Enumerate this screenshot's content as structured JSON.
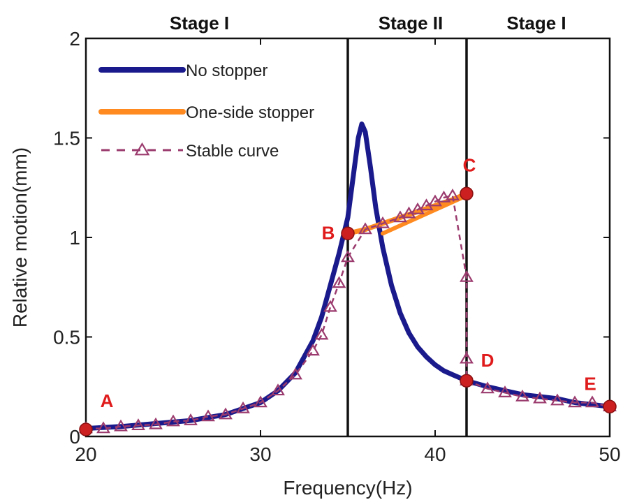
{
  "chart_data": {
    "type": "line",
    "xlabel": "Frequency(Hz)",
    "ylabel": "Relative motion(mm)",
    "xlim": [
      20,
      50
    ],
    "ylim": [
      0,
      2
    ],
    "x_ticks": [
      "20",
      "30",
      "40",
      "50"
    ],
    "y_ticks": [
      "0",
      "0.5",
      "1",
      "1.5",
      "2"
    ],
    "grid": false,
    "legend_position": "top-left",
    "stage_boundaries": [
      35,
      41.8
    ],
    "stages": [
      {
        "label": "Stage I",
        "x": 26.5
      },
      {
        "label": "Stage II",
        "x": 38.6
      },
      {
        "label": "Stage I",
        "x": 45.8
      }
    ],
    "series": [
      {
        "name": "No stopper",
        "color": "#1a1a8c",
        "style": "solid",
        "x": [
          20,
          22,
          24,
          26,
          28,
          30,
          31,
          32,
          33,
          33.5,
          34,
          34.5,
          35,
          35.3,
          35.6,
          35.8,
          36.0,
          36.3,
          36.6,
          37,
          37.5,
          38,
          38.5,
          39,
          39.5,
          40,
          40.5,
          41,
          41.8,
          43,
          44,
          45,
          46,
          47,
          48,
          49,
          50
        ],
        "y": [
          0.04,
          0.05,
          0.065,
          0.08,
          0.11,
          0.17,
          0.23,
          0.32,
          0.48,
          0.6,
          0.76,
          0.92,
          1.1,
          1.3,
          1.5,
          1.57,
          1.53,
          1.35,
          1.15,
          0.95,
          0.76,
          0.62,
          0.52,
          0.45,
          0.4,
          0.36,
          0.33,
          0.31,
          0.28,
          0.25,
          0.23,
          0.21,
          0.2,
          0.19,
          0.17,
          0.16,
          0.15
        ]
      },
      {
        "name": "One-side stopper",
        "color": "#ff8a1f",
        "style": "solid",
        "x": [
          35,
          36,
          37,
          38,
          39,
          40,
          41,
          41.8
        ],
        "y": [
          1.02,
          1.04,
          1.07,
          1.1,
          1.13,
          1.16,
          1.19,
          1.22
        ],
        "extra_segment": {
          "x": [
            37,
            41.8
          ],
          "y": [
            1.02,
            1.21
          ]
        }
      },
      {
        "name": "Stable curve",
        "color": "#9b3b6e",
        "style": "dashed-triangle",
        "x": [
          20,
          21,
          22,
          23,
          24,
          25,
          26,
          27,
          28,
          29,
          30,
          31,
          32,
          33,
          33.5,
          34,
          34.5,
          35,
          36,
          37,
          38,
          38.5,
          39,
          39.5,
          40,
          40.5,
          41,
          41.8,
          41.8,
          41.8,
          43,
          44,
          45,
          46,
          47,
          48,
          49,
          50
        ],
        "y": [
          0.04,
          0.04,
          0.05,
          0.055,
          0.06,
          0.075,
          0.08,
          0.1,
          0.11,
          0.14,
          0.17,
          0.23,
          0.31,
          0.43,
          0.51,
          0.65,
          0.77,
          0.9,
          1.04,
          1.07,
          1.1,
          1.12,
          1.14,
          1.16,
          1.18,
          1.2,
          1.21,
          0.8,
          0.39,
          0.28,
          0.24,
          0.22,
          0.2,
          0.19,
          0.18,
          0.17,
          0.17,
          0.15
        ]
      }
    ],
    "key_points": [
      {
        "label": "A",
        "x": 20,
        "y": 0.035
      },
      {
        "label": "B",
        "x": 35,
        "y": 1.02
      },
      {
        "label": "C",
        "x": 41.8,
        "y": 1.22
      },
      {
        "label": "D",
        "x": 41.8,
        "y": 0.28
      },
      {
        "label": "E",
        "x": 50,
        "y": 0.15
      }
    ],
    "marker_color": "#cc1f1f"
  }
}
